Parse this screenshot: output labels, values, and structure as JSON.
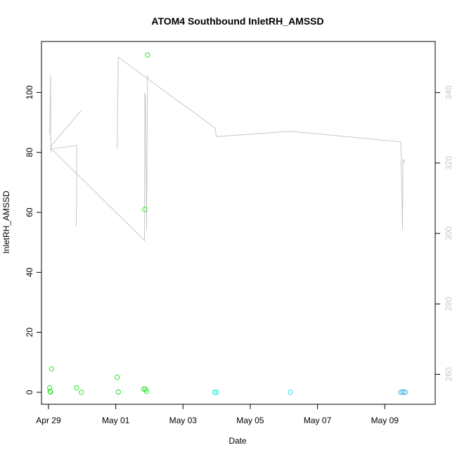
{
  "chart_data": {
    "type": "scatter",
    "title": "ATOM4 Southbound InletRH_AMSSD",
    "xlabel": "Date",
    "ylabel": "InletRH_AMSSD",
    "xlim": [
      "2024-04-28 19:00",
      "2024-05-10 12:00"
    ],
    "ylim": [
      -4,
      117
    ],
    "ylim_right": [
      251.5,
      354.5
    ],
    "x_ticks": [
      {
        "date": "2024-04-29 00:00",
        "label": "Apr 29"
      },
      {
        "date": "2024-05-01 00:00",
        "label": "May 01"
      },
      {
        "date": "2024-05-03 00:00",
        "label": "May 03"
      },
      {
        "date": "2024-05-05 00:00",
        "label": "May 05"
      },
      {
        "date": "2024-05-07 00:00",
        "label": "May 07"
      },
      {
        "date": "2024-05-09 00:00",
        "label": "May 09"
      }
    ],
    "y_ticks": [
      0,
      20,
      40,
      60,
      80,
      100
    ],
    "y_ticks_right": [
      260,
      280,
      300,
      320,
      340
    ],
    "grid": false,
    "series": [
      {
        "kind": "points",
        "axis": "left",
        "marker": "open-circle",
        "points": [
          {
            "x": "2024-04-29 00:50",
            "y": 1.5,
            "color": "#2ee82e"
          },
          {
            "x": "2024-04-29 01:10",
            "y": 0.3,
            "color": "#2ee82e"
          },
          {
            "x": "2024-04-29 01:30",
            "y": 0.1,
            "color": "#2ee82e"
          },
          {
            "x": "2024-04-29 02:10",
            "y": 7.8,
            "color": "#2ee82e"
          },
          {
            "x": "2024-04-29 20:00",
            "y": 1.5,
            "color": "#2ee82e"
          },
          {
            "x": "2024-04-29 23:30",
            "y": 0.0,
            "color": "#2ee82e"
          },
          {
            "x": "2024-05-01 01:00",
            "y": 5.0,
            "color": "#2ee82e"
          },
          {
            "x": "2024-05-01 01:50",
            "y": 0.1,
            "color": "#2ee82e"
          },
          {
            "x": "2024-05-01 20:00",
            "y": 1.1,
            "color": "#2ee82e"
          },
          {
            "x": "2024-05-01 20:45",
            "y": 61.0,
            "color": "#2ee82e"
          },
          {
            "x": "2024-05-01 21:10",
            "y": 1.0,
            "color": "#2ee82e"
          },
          {
            "x": "2024-05-01 22:00",
            "y": 0.3,
            "color": "#2ee82e"
          },
          {
            "x": "2024-05-01 22:40",
            "y": 112.5,
            "color": "#2ee82e"
          },
          {
            "x": "2024-05-03 22:40",
            "y": 0.0,
            "color": "#2ee8c8"
          },
          {
            "x": "2024-05-03 23:50",
            "y": 0.0,
            "color": "#2ee8c8"
          },
          {
            "x": "2024-05-06 04:40",
            "y": 0.0,
            "color": "#3cd8f0"
          },
          {
            "x": "2024-05-09 11:30",
            "y": 0.0,
            "color": "#2ea8e8"
          },
          {
            "x": "2024-05-09 13:00",
            "y": 0.1,
            "color": "#2ea8e8"
          },
          {
            "x": "2024-05-09 14:40",
            "y": 0.0,
            "color": "#2ea8e8"
          }
        ]
      },
      {
        "kind": "line",
        "axis": "right",
        "color": "#c8c8c8",
        "points": [
          {
            "x": "2024-04-29 00:50",
            "y": 328
          },
          {
            "x": "2024-04-29 01:30",
            "y": 345
          },
          {
            "x": "2024-04-29 01:40",
            "y": 323
          },
          {
            "x": "2024-04-29 02:00",
            "y": 325
          },
          {
            "x": "2024-04-29 23:20",
            "y": 335
          },
          {
            "x": "2024-04-29 23:00",
            "y": 328
          },
          {
            "x": "2024-04-29 20:00",
            "y": 302
          },
          {
            "x": "2024-04-29 20:00",
            "y": 302
          }
        ],
        "segments": [
          [
            [
              "2024-04-29 00:50",
              328
            ],
            [
              "2024-04-29 01:30",
              345
            ],
            [
              "2024-04-29 01:40",
              323
            ],
            [
              "2024-04-29 02:10",
              325
            ],
            [
              "2024-04-29 23:30",
              335
            ]
          ],
          [
            [
              "2024-04-29 19:50",
              302
            ],
            [
              "2024-04-29 20:10",
              325
            ],
            [
              "2024-04-29 02:10",
              324
            ],
            [
              "2024-05-01 20:30",
              298
            ],
            [
              "2024-05-01 20:45",
              340
            ],
            [
              "2024-05-01 21:10",
              339
            ]
          ],
          [
            [
              "2024-05-01 01:00",
              324
            ],
            [
              "2024-05-01 01:50",
              350
            ],
            [
              "2024-05-03 22:40",
              330
            ],
            [
              "2024-05-03 23:50",
              327.5
            ],
            [
              "2024-05-06 04:40",
              329
            ],
            [
              "2024-05-09 11:30",
              326
            ],
            [
              "2024-05-09 12:40",
              301
            ],
            [
              "2024-05-09 13:00",
              321
            ],
            [
              "2024-05-09 14:40",
              320
            ]
          ],
          [
            [
              "2024-05-01 21:10",
              339
            ],
            [
              "2024-05-01 22:00",
              301
            ],
            [
              "2024-05-01 22:40",
              345
            ]
          ]
        ]
      }
    ]
  }
}
